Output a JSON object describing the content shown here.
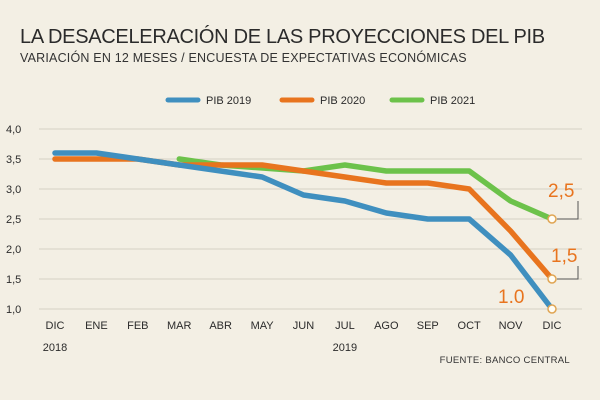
{
  "title": "LA DESACELERACIÓN DE LAS PROYECCIONES DEL PIB",
  "subtitle": "VARIACIÓN EN 12 MESES / ENCUESTA DE EXPECTATIVAS ECONÓMICAS",
  "source": "FUENTE: BANCO CENTRAL",
  "chart_data": {
    "type": "line",
    "title": "LA DESACELERACIÓN DE LAS PROYECCIONES DEL PIB",
    "subtitle": "VARIACIÓN EN 12 MESES / ENCUESTA DE EXPECTATIVAS ECONÓMICAS",
    "categories": [
      "DIC",
      "ENE",
      "FEB",
      "MAR",
      "ABR",
      "MAY",
      "JUN",
      "JUL",
      "AGO",
      "SEP",
      "OCT",
      "NOV",
      "DIC"
    ],
    "year_labels": [
      {
        "index": 0,
        "label": "2018"
      },
      {
        "index": 7,
        "label": "2019"
      }
    ],
    "yticks": [
      "4,0",
      "3,5",
      "3,0",
      "2,5",
      "2,0",
      "1,5",
      "1,0"
    ],
    "ylim": [
      1.0,
      4.0
    ],
    "grid": true,
    "legend_position": "top",
    "series": [
      {
        "name": "PIB 2019",
        "color": "#3f8fbf",
        "values": [
          3.6,
          3.6,
          3.5,
          3.4,
          3.3,
          3.2,
          2.9,
          2.8,
          2.6,
          2.5,
          2.5,
          1.9,
          1.0
        ],
        "end_label": "1.0",
        "end_label_color": "#e8741e"
      },
      {
        "name": "PIB 2020",
        "color": "#e8741e",
        "values": [
          3.5,
          3.5,
          3.5,
          3.4,
          3.4,
          3.4,
          3.3,
          3.2,
          3.1,
          3.1,
          3.0,
          2.3,
          1.5
        ],
        "end_label": "1,5",
        "end_label_color": "#e8741e"
      },
      {
        "name": "PIB 2021",
        "color": "#6cc24a",
        "values": [
          null,
          null,
          null,
          3.5,
          3.4,
          null,
          3.3,
          3.4,
          3.3,
          3.3,
          3.3,
          2.8,
          2.5
        ],
        "end_label": "2,5",
        "end_label_color": "#e8741e"
      }
    ]
  }
}
